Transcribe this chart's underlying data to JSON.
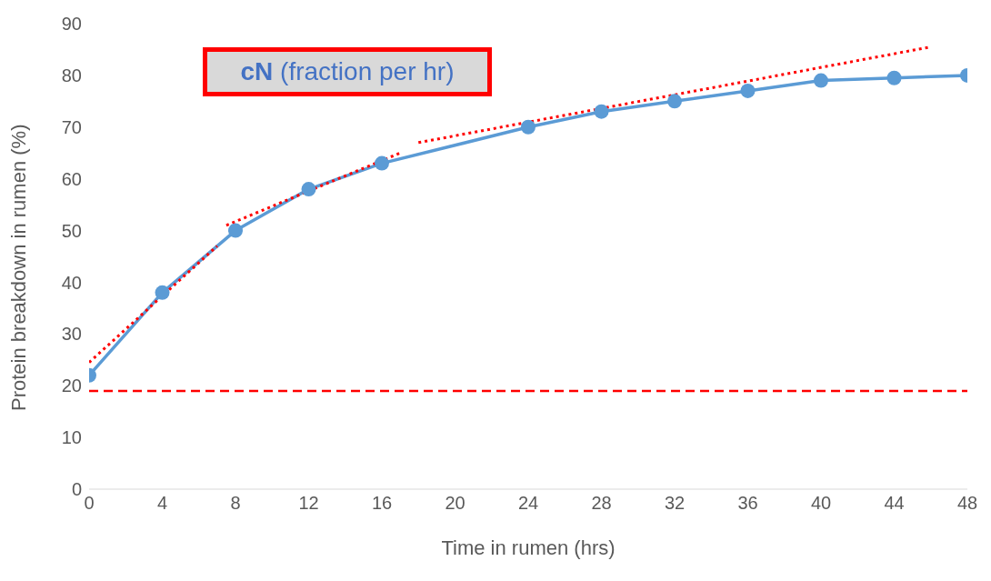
{
  "chart_data": {
    "type": "line",
    "xlabel": "Time in rumen (hrs)",
    "ylabel": "Protein breakdown in rumen (%)",
    "xlim": [
      0,
      48
    ],
    "xticks": [
      0,
      4,
      8,
      12,
      16,
      20,
      24,
      28,
      32,
      36,
      40,
      44,
      48
    ],
    "ylim": [
      0,
      90
    ],
    "yticks": [
      0,
      10,
      20,
      30,
      40,
      50,
      60,
      70,
      80,
      90
    ],
    "marker": "circle",
    "series": [
      {
        "color": "#5b9bd5",
        "x": [
          0,
          4,
          8,
          12,
          16,
          24,
          28,
          32,
          36,
          40,
          44,
          48
        ],
        "values": [
          22,
          38,
          50,
          58,
          63,
          70,
          73,
          75,
          77,
          79,
          79.5,
          80
        ]
      },
      {
        "type": "line",
        "color": "#ff0000",
        "line_style": "dotted",
        "marker": "none",
        "x": [
          0,
          7
        ],
        "values": [
          24.5,
          47
        ]
      },
      {
        "type": "line",
        "color": "#ff0000",
        "line_style": "dotted",
        "marker": "none",
        "x": [
          7.5,
          17
        ],
        "values": [
          51,
          65
        ]
      },
      {
        "type": "line",
        "color": "#ff0000",
        "line_style": "dotted",
        "marker": "none",
        "x": [
          18,
          46
        ],
        "values": [
          67,
          85.5
        ]
      }
    ],
    "ref_lines": [
      {
        "axis": "y",
        "value": 19,
        "color": "#ff0000",
        "line_style": "dashed"
      }
    ],
    "annotations": [
      "cN (fraction per hr)"
    ]
  }
}
